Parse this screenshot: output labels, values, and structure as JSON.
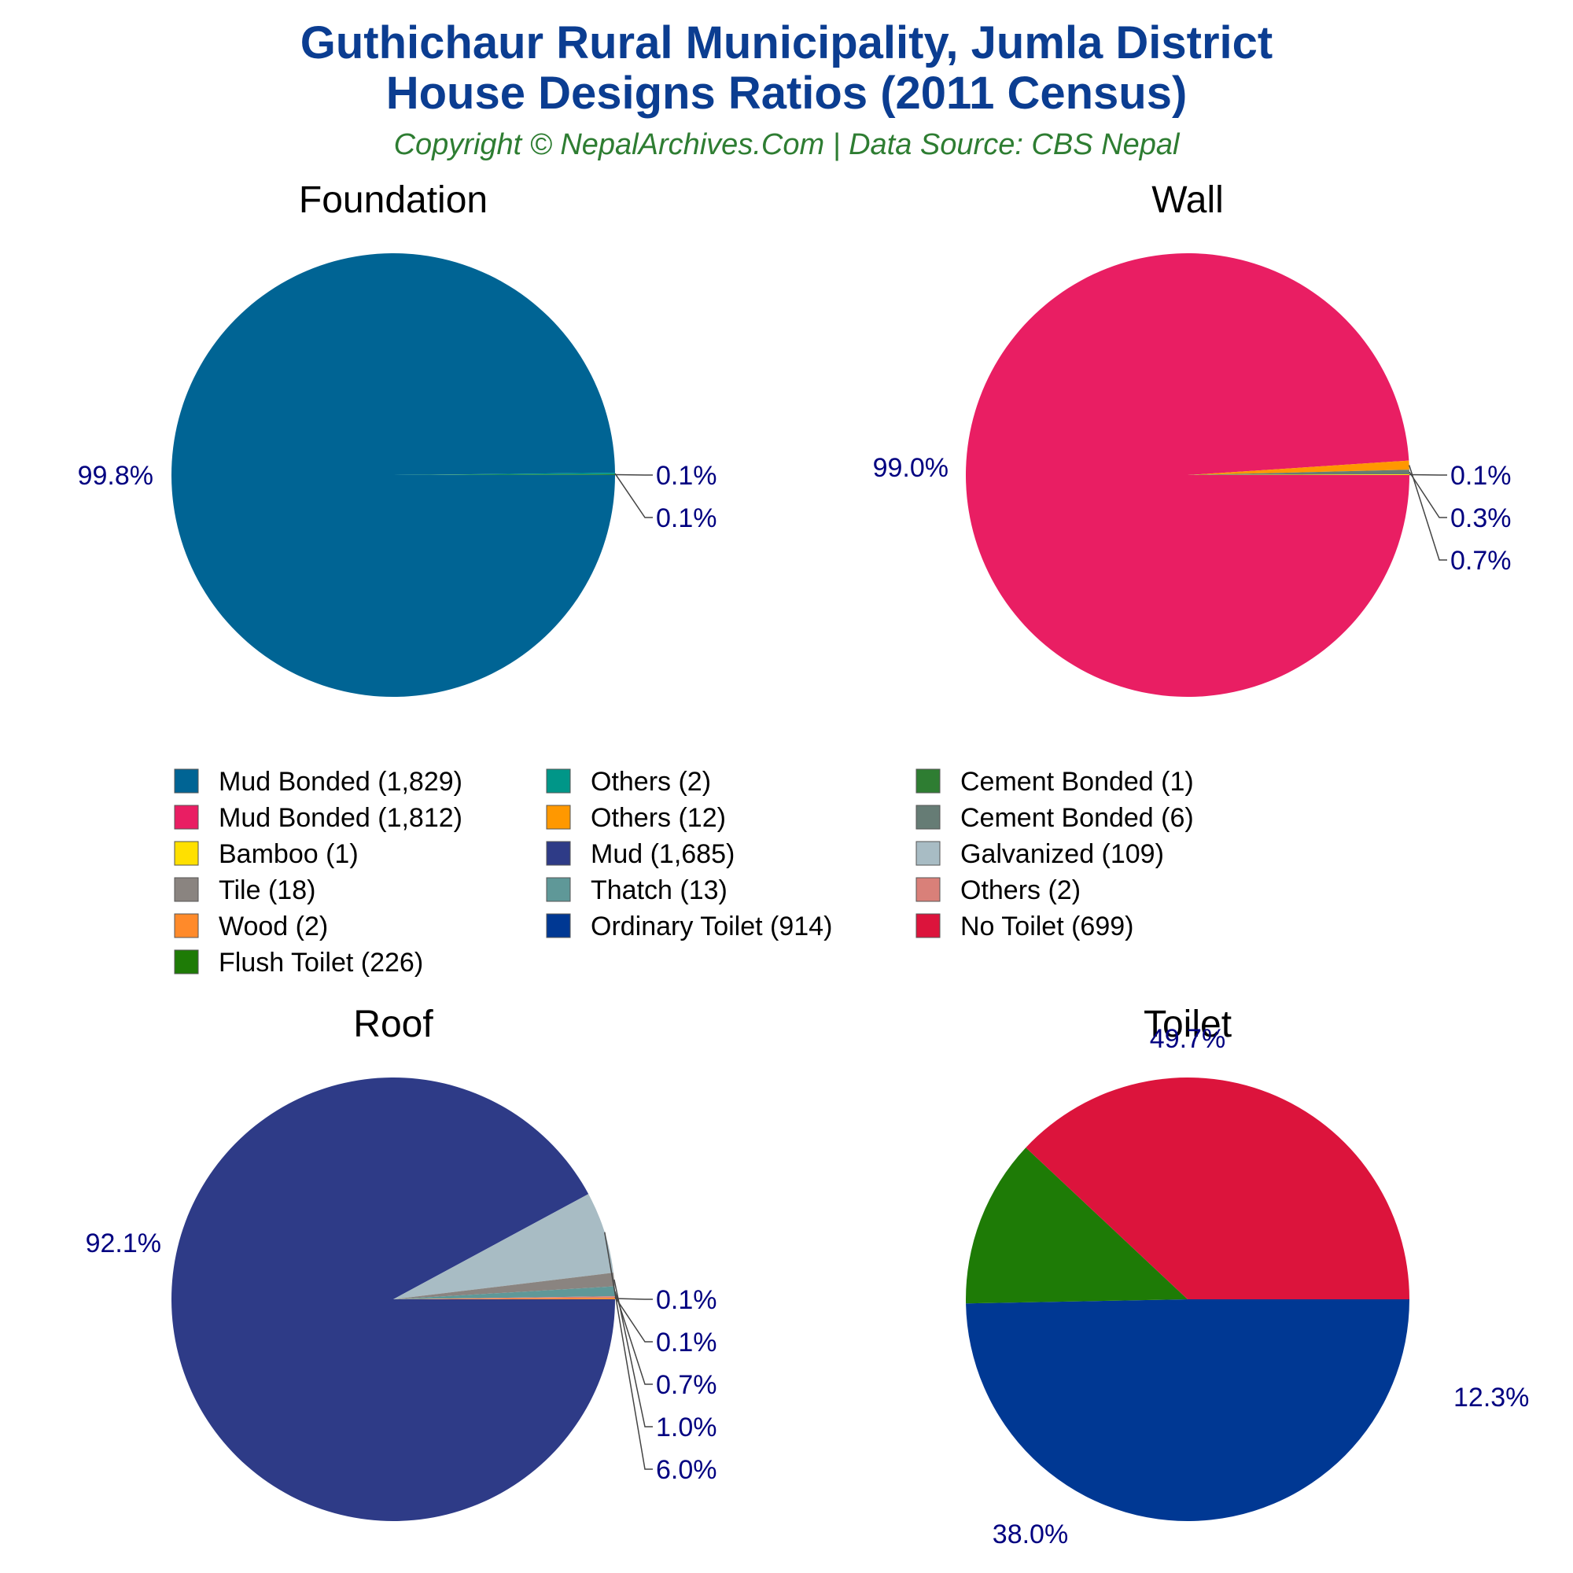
{
  "title_line1": "Guthichaur Rural Municipality, Jumla District",
  "title_line2": "House Designs Ratios (2011 Census)",
  "subtitle": "Copyright © NepalArchives.Com | Data Source: CBS Nepal",
  "chart_data": [
    {
      "type": "pie",
      "title": "Foundation",
      "slices": [
        {
          "label": "Mud Bonded",
          "value": 1829,
          "pct": "99.8%",
          "color": "#006494"
        },
        {
          "label": "Others",
          "value": 2,
          "pct": "0.1%",
          "color": "#009688"
        },
        {
          "label": "Cement Bonded",
          "value": 1,
          "pct": "0.1%",
          "color": "#2e7d32"
        }
      ]
    },
    {
      "type": "pie",
      "title": "Wall",
      "slices": [
        {
          "label": "Mud Bonded",
          "value": 1812,
          "pct": "99.0%",
          "color": "#e91e63"
        },
        {
          "label": "Others",
          "value": 12,
          "pct": "0.7%",
          "color": "#ff9800"
        },
        {
          "label": "Cement Bonded",
          "value": 6,
          "pct": "0.3%",
          "color": "#667c75"
        },
        {
          "label": "Bamboo",
          "value": 1,
          "pct": "0.1%",
          "color": "#ffe000"
        }
      ]
    },
    {
      "type": "pie",
      "title": "Roof",
      "slices": [
        {
          "label": "Mud",
          "value": 1685,
          "pct": "92.1%",
          "color": "#2e3b87"
        },
        {
          "label": "Galvanized",
          "value": 109,
          "pct": "6.0%",
          "color": "#a8bcc4"
        },
        {
          "label": "Tile",
          "value": 18,
          "pct": "1.0%",
          "color": "#8a8480"
        },
        {
          "label": "Thatch",
          "value": 13,
          "pct": "0.7%",
          "color": "#5f9898"
        },
        {
          "label": "Others",
          "value": 2,
          "pct": "0.1%",
          "color": "#d98079"
        },
        {
          "label": "Wood",
          "value": 2,
          "pct": "0.1%",
          "color": "#ff8a2a"
        }
      ]
    },
    {
      "type": "pie",
      "title": "Toilet",
      "slices": [
        {
          "label": "Ordinary Toilet",
          "value": 914,
          "pct": "49.7%",
          "color": "#003893"
        },
        {
          "label": "Flush Toilet",
          "value": 226,
          "pct": "12.3%",
          "color": "#1e7b06"
        },
        {
          "label": "No Toilet",
          "value": 699,
          "pct": "38.0%",
          "color": "#dc143c"
        }
      ]
    }
  ],
  "legend": {
    "columns": [
      [
        {
          "label": "Mud Bonded (1,829)",
          "color": "#006494"
        },
        {
          "label": "Mud Bonded (1,812)",
          "color": "#e91e63"
        },
        {
          "label": "Bamboo (1)",
          "color": "#ffe000"
        },
        {
          "label": "Tile (18)",
          "color": "#8a8480"
        },
        {
          "label": "Wood (2)",
          "color": "#ff8a2a"
        },
        {
          "label": "Flush Toilet (226)",
          "color": "#1e7b06"
        }
      ],
      [
        {
          "label": "Others (2)",
          "color": "#009688"
        },
        {
          "label": "Others (12)",
          "color": "#ff9800"
        },
        {
          "label": "Mud (1,685)",
          "color": "#2e3b87"
        },
        {
          "label": "Thatch (13)",
          "color": "#5f9898"
        },
        {
          "label": "Ordinary Toilet (914)",
          "color": "#003893"
        }
      ],
      [
        {
          "label": "Cement Bonded (1)",
          "color": "#2e7d32"
        },
        {
          "label": "Cement Bonded (6)",
          "color": "#667c75"
        },
        {
          "label": "Galvanized (109)",
          "color": "#a8bcc4"
        },
        {
          "label": "Others (2)",
          "color": "#d98079"
        },
        {
          "label": "No Toilet (699)",
          "color": "#dc143c"
        }
      ]
    ]
  }
}
